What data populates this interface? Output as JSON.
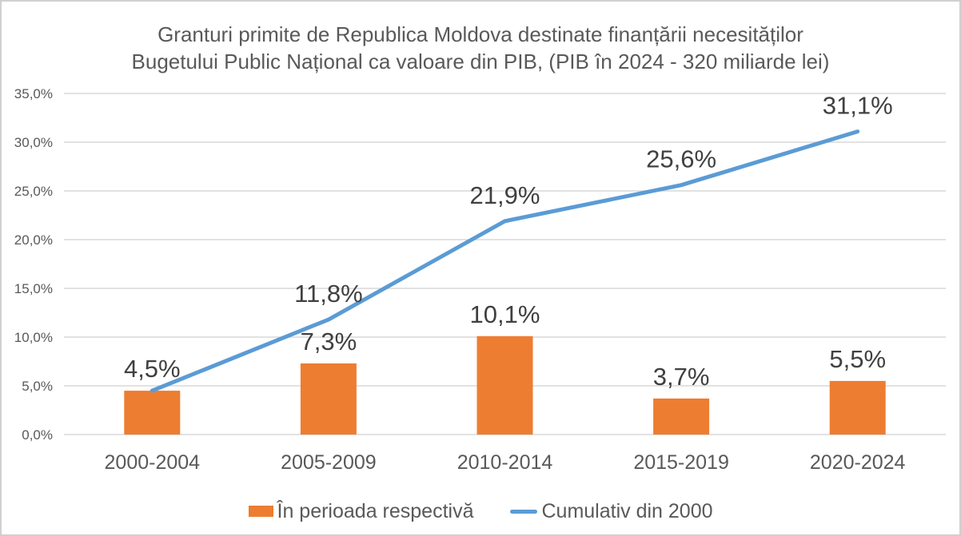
{
  "chart_data": {
    "type": "combo",
    "title_line1": "Granturi primite de Republica Moldova destinate finanțării necesităților",
    "title_line2": "Bugetului Public Național ca valoare din PIB,  (PIB în 2024 - 320 miliarde lei)",
    "categories": [
      "2000-2004",
      "2005-2009",
      "2010-2014",
      "2015-2019",
      "2020-2024"
    ],
    "series": [
      {
        "name": "În perioada respectivă",
        "type": "bar",
        "values": [
          4.5,
          7.3,
          10.1,
          3.7,
          5.5
        ],
        "labels": [
          "4,5%",
          "7,3%",
          "10,1%",
          "3,7%",
          "5,5%"
        ],
        "color": "#ED7D31"
      },
      {
        "name": "Cumulativ din 2000",
        "type": "line",
        "values": [
          4.5,
          11.8,
          21.9,
          25.6,
          31.1
        ],
        "labels": [
          "",
          "11,8%",
          "21,9%",
          "25,6%",
          "31,1%"
        ],
        "color": "#5B9BD5"
      }
    ],
    "y_axis": {
      "min": 0,
      "max": 35,
      "tick_values": [
        0,
        5,
        10,
        15,
        20,
        25,
        30,
        35
      ],
      "tick_labels": [
        "0,0%",
        "5,0%",
        "10,0%",
        "15,0%",
        "20,0%",
        "25,0%",
        "30,0%",
        "35,0%"
      ]
    },
    "grid": true,
    "legend_position": "bottom",
    "colors": {
      "grid": "#D9D9D9",
      "axis_text": "#595959",
      "data_label": "#404040",
      "title_text": "#595959"
    }
  }
}
